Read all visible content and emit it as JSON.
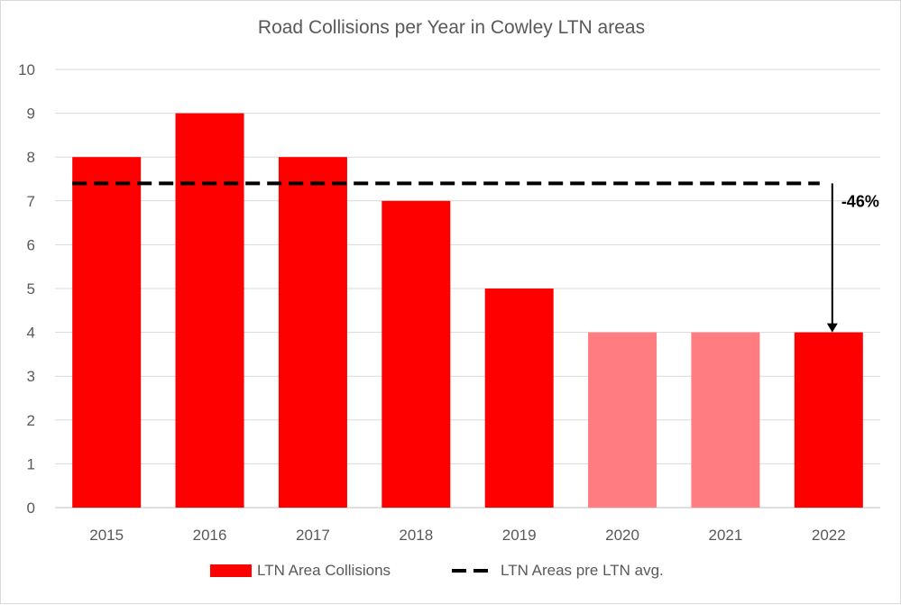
{
  "chart_data": {
    "type": "bar",
    "title": "Road Collisions per Year in Cowley LTN areas",
    "categories": [
      "2015",
      "2016",
      "2017",
      "2018",
      "2019",
      "2020",
      "2021",
      "2022"
    ],
    "series": [
      {
        "name": "LTN Area Collisions",
        "values": [
          8,
          9,
          8,
          7,
          5,
          4,
          4,
          4
        ],
        "color": "#ff0000",
        "highlight_color": "#ff7c80",
        "highlight_categories": [
          "2020",
          "2021"
        ]
      },
      {
        "name": "LTN Areas pre LTN avg.",
        "type": "line",
        "style": "dashed",
        "color": "#000000",
        "value": 7.4
      }
    ],
    "annotation": {
      "text": "-46%",
      "from": 7.4,
      "to": 4,
      "category": "2022"
    },
    "ylim": [
      0,
      10
    ],
    "yticks": [
      "0",
      "1",
      "2",
      "3",
      "4",
      "5",
      "6",
      "7",
      "8",
      "9",
      "10"
    ],
    "grid": true,
    "legend_position": "bottom"
  }
}
